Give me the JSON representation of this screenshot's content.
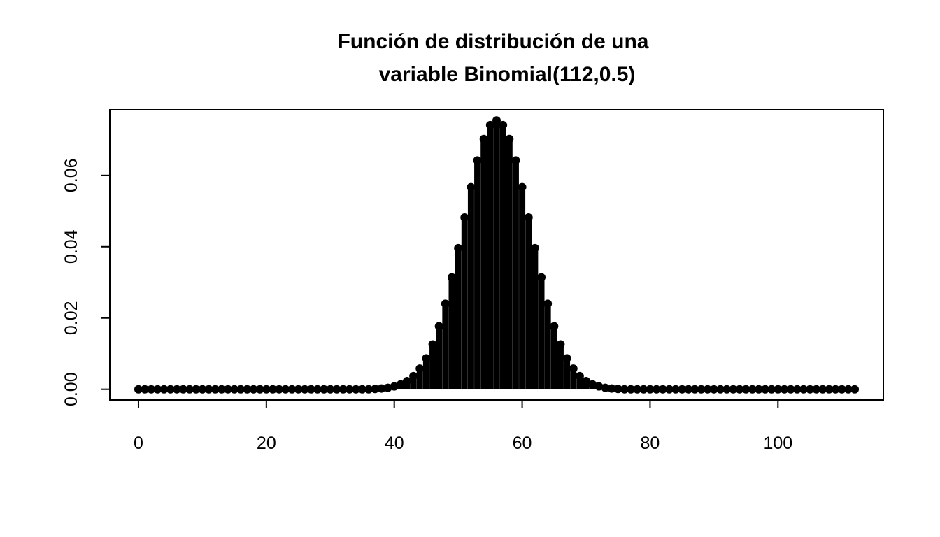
{
  "chart_data": {
    "type": "spike",
    "title": [
      "Función de distribución de una",
      "variable Binomial(112,0.5)"
    ],
    "x": [
      0,
      1,
      2,
      3,
      4,
      5,
      6,
      7,
      8,
      9,
      10,
      11,
      12,
      13,
      14,
      15,
      16,
      17,
      18,
      19,
      20,
      21,
      22,
      23,
      24,
      25,
      26,
      27,
      28,
      29,
      30,
      31,
      32,
      33,
      34,
      35,
      36,
      37,
      38,
      39,
      40,
      41,
      42,
      43,
      44,
      45,
      46,
      47,
      48,
      49,
      50,
      51,
      52,
      53,
      54,
      55,
      56,
      57,
      58,
      59,
      60,
      61,
      62,
      63,
      64,
      65,
      66,
      67,
      68,
      69,
      70,
      71,
      72,
      73,
      74,
      75,
      76,
      77,
      78,
      79,
      80,
      81,
      82,
      83,
      84,
      85,
      86,
      87,
      88,
      89,
      90,
      91,
      92,
      93,
      94,
      95,
      96,
      97,
      98,
      99,
      100,
      101,
      102,
      103,
      104,
      105,
      106,
      107,
      108,
      109,
      110,
      111,
      112
    ],
    "values": [
      0,
      0,
      0,
      0,
      0,
      0,
      0,
      0,
      0,
      0,
      0,
      0,
      0,
      0,
      0,
      0,
      0,
      0,
      0,
      0,
      0,
      0,
      0,
      0,
      0,
      0,
      0,
      0,
      0,
      0,
      0,
      0,
      0,
      0,
      0,
      0,
      0,
      0.0001,
      0.0002,
      0.0004,
      0.0008,
      0.0014,
      0.0023,
      0.0037,
      0.0058,
      0.0087,
      0.0126,
      0.0177,
      0.024,
      0.0314,
      0.0396,
      0.0482,
      0.0567,
      0.0642,
      0.0702,
      0.0741,
      0.0754,
      0.0741,
      0.0702,
      0.0642,
      0.0567,
      0.0482,
      0.0396,
      0.0314,
      0.024,
      0.0177,
      0.0126,
      0.0087,
      0.0058,
      0.0037,
      0.0023,
      0.0014,
      0.0008,
      0.0004,
      0.0002,
      0.0001,
      0,
      0,
      0,
      0,
      0,
      0,
      0,
      0,
      0,
      0,
      0,
      0,
      0,
      0,
      0,
      0,
      0,
      0,
      0,
      0,
      0,
      0,
      0,
      0,
      0,
      0,
      0,
      0,
      0,
      0,
      0,
      0,
      0,
      0,
      0,
      0,
      0
    ],
    "color": "#000000",
    "xlim": [
      -4.48,
      116.48
    ],
    "xticks": [
      0,
      20,
      40,
      60,
      80,
      100
    ],
    "ylim": [
      -0.003,
      0.0784
    ],
    "yticks": [
      {
        "value": 0,
        "label": "0.00"
      },
      {
        "value": 0.02,
        "label": "0.02"
      },
      {
        "value": 0.04,
        "label": "0.04"
      },
      {
        "value": 0.06,
        "label": "0.06"
      }
    ]
  }
}
